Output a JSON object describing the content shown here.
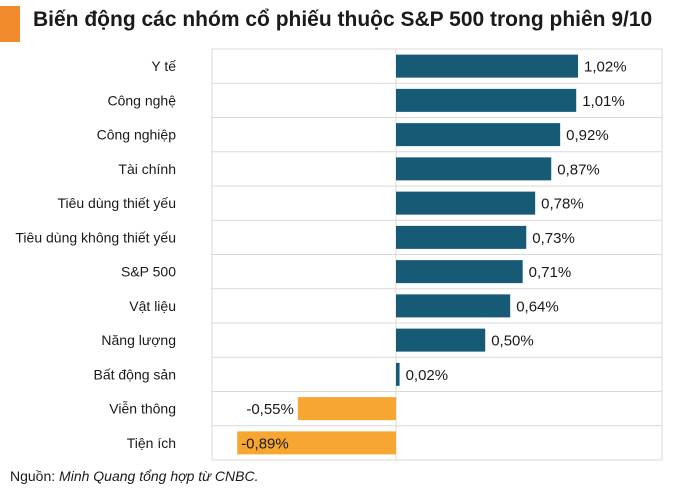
{
  "header": {
    "title": "Biến động các nhóm cổ phiếu thuộc S&P 500 trong phiên 9/10",
    "accent_color": "#f28a2e"
  },
  "footer": {
    "source_label": "Nguồn: ",
    "source_text": "Minh Quang tổng hợp từ CNBC."
  },
  "chart_data": {
    "type": "bar",
    "orientation": "horizontal",
    "categories": [
      "Y tế",
      "Công nghệ",
      "Công nghiệp",
      "Tài chính",
      "Tiêu dùng thiết yếu",
      "Tiêu dùng không thiết yếu",
      "S&P 500",
      "Vật liệu",
      "Năng lượng",
      "Bất động sản",
      "Viễn thông",
      "Tiện ích"
    ],
    "values": [
      1.02,
      1.01,
      0.92,
      0.87,
      0.78,
      0.73,
      0.71,
      0.64,
      0.5,
      0.02,
      -0.55,
      -0.89
    ],
    "data_labels": [
      "1,02%",
      "1,01%",
      "0,92%",
      "0,87%",
      "0,78%",
      "0,73%",
      "0,71%",
      "0,64%",
      "0,50%",
      "0,02%",
      "-0,55%",
      "-0,89%"
    ],
    "xlim": [
      -1.0,
      1.2
    ],
    "grid": true,
    "colors": {
      "positive": "#165a75",
      "negative": "#f7a731",
      "grid": "#d9d9d9"
    }
  }
}
